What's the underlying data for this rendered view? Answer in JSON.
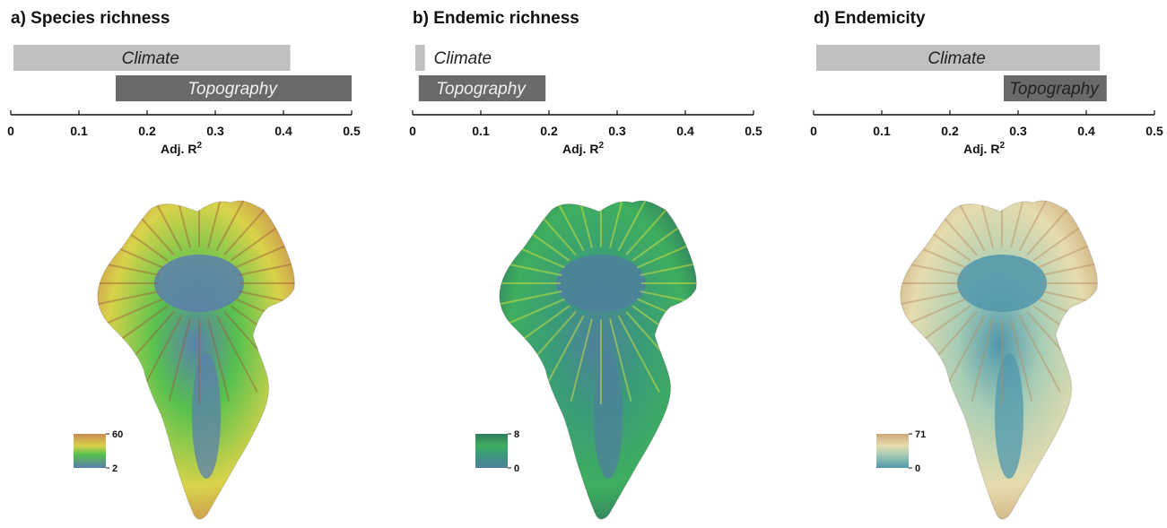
{
  "chart_data": [
    {
      "type": "bar",
      "title": "a) Species richness",
      "xlabel": "Adj. R",
      "xlabel_sup": "2",
      "xlim": [
        0,
        0.5
      ],
      "xticks": [
        "0",
        "0.1",
        "0.2",
        "0.3",
        "0.4",
        "0.5"
      ],
      "bars": [
        {
          "name": "Climate",
          "start": 0.0,
          "end": 0.41,
          "color": "#c0c0c0",
          "label_color": "#222222"
        },
        {
          "name": "Topography",
          "start": 0.15,
          "end": 0.5,
          "color": "#6a6a6a",
          "label_color": "#f0f0f0"
        }
      ],
      "map": {
        "legend_max": "60",
        "legend_min": "2",
        "colors": {
          "center": "#5a7fae",
          "mid": "#57c14e",
          "outer": "#d9d34a",
          "edge": "#c98a52",
          "ridge": "#9b5a3c"
        }
      }
    },
    {
      "type": "bar",
      "title": "b) Endemic richness",
      "xlabel": "Adj. R",
      "xlabel_sup": "2",
      "xlim": [
        0,
        0.5
      ],
      "xticks": [
        "0",
        "0.1",
        "0.2",
        "0.3",
        "0.4",
        "0.5"
      ],
      "bars": [
        {
          "name": "Climate",
          "start": 0.0,
          "end": 0.018,
          "color": "#c0c0c0",
          "label_color": "#222222"
        },
        {
          "name": "Topography",
          "start": 0.005,
          "end": 0.195,
          "color": "#6a6a6a",
          "label_color": "#f0f0f0"
        }
      ],
      "map": {
        "legend_max": "8",
        "legend_min": "0",
        "colors": {
          "center": "#4f7f9e",
          "mid": "#3a9a7a",
          "outer": "#3fae5f",
          "edge": "#2f7a5e",
          "ridge": "#e8ea3a"
        }
      }
    },
    {
      "type": "bar",
      "title": "d) Endemicity",
      "xlabel": "Adj. R",
      "xlabel_sup": "2",
      "xlim": [
        0,
        0.5
      ],
      "xticks": [
        "0",
        "0.1",
        "0.2",
        "0.3",
        "0.4",
        "0.5"
      ],
      "bars": [
        {
          "name": "Climate",
          "start": 0.0,
          "end": 0.42,
          "color": "#c0c0c0",
          "label_color": "#222222"
        },
        {
          "name": "Topography",
          "start": 0.275,
          "end": 0.43,
          "color": "#6a6a6a",
          "label_color": "#222222"
        }
      ],
      "map": {
        "legend_max": "71",
        "legend_min": "0",
        "colors": {
          "center": "#4f97ac",
          "mid": "#a7cdb5",
          "outer": "#e6dcae",
          "edge": "#cda97a",
          "ridge": "#b98c60"
        }
      }
    }
  ]
}
